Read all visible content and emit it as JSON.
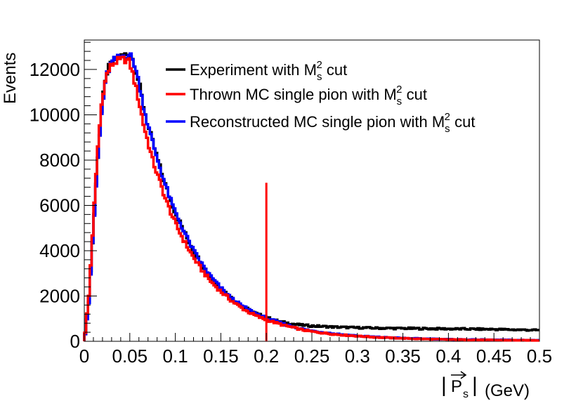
{
  "chart_data": {
    "type": "line",
    "title": "",
    "xlabel": "|P_s| (GeV)",
    "xlabel_parts": {
      "bar_left": "|",
      "symbol": "P",
      "subscript": "s",
      "bar_right": "|",
      "unit": "(GeV)"
    },
    "ylabel": "Events",
    "xlim": [
      0,
      0.5
    ],
    "ylim": [
      0,
      13300
    ],
    "x_ticks": [
      0,
      0.05,
      0.1,
      0.15,
      0.2,
      0.25,
      0.3,
      0.35,
      0.4,
      0.45,
      0.5
    ],
    "x_tick_labels": [
      "0",
      "0.05",
      "0.1",
      "0.15",
      "0.2",
      "0.25",
      "0.3",
      "0.35",
      "0.4",
      "0.45",
      "0.5"
    ],
    "y_ticks": [
      0,
      2000,
      4000,
      6000,
      8000,
      10000,
      12000
    ],
    "y_tick_labels": [
      "0",
      "2000",
      "4000",
      "6000",
      "8000",
      "10000",
      "12000"
    ],
    "grid": false,
    "legend_position": "top-right",
    "series": [
      {
        "name": "Experiment with M_s^2 cut",
        "legend": {
          "before": "Experiment with M",
          "sub": "s",
          "sup": "2",
          "after": " cut"
        },
        "color": "#000000",
        "x": [
          0.0,
          0.005,
          0.01,
          0.015,
          0.02,
          0.025,
          0.03,
          0.035,
          0.04,
          0.045,
          0.05,
          0.055,
          0.06,
          0.065,
          0.07,
          0.075,
          0.08,
          0.085,
          0.09,
          0.095,
          0.1,
          0.11,
          0.12,
          0.13,
          0.14,
          0.15,
          0.16,
          0.17,
          0.18,
          0.19,
          0.2,
          0.21,
          0.22,
          0.23,
          0.24,
          0.25,
          0.275,
          0.3,
          0.325,
          0.35,
          0.375,
          0.4,
          0.425,
          0.45,
          0.475,
          0.5
        ],
        "y": [
          0,
          1800,
          5000,
          8200,
          10600,
          11900,
          12300,
          12450,
          12550,
          12650,
          12700,
          12300,
          11400,
          10400,
          9500,
          8800,
          8100,
          7400,
          6800,
          6200,
          5700,
          4800,
          4000,
          3350,
          2800,
          2350,
          1950,
          1650,
          1400,
          1200,
          1050,
          920,
          830,
          760,
          710,
          680,
          630,
          600,
          580,
          570,
          560,
          550,
          540,
          530,
          510,
          490
        ]
      },
      {
        "name": "Thrown MC single pion with M_s^2 cut",
        "legend": {
          "before": "Thrown MC single pion with M",
          "sub": "s",
          "sup": "2",
          "after": " cut"
        },
        "color": "#ff0000",
        "x": [
          0.0,
          0.005,
          0.01,
          0.015,
          0.02,
          0.025,
          0.03,
          0.035,
          0.04,
          0.045,
          0.05,
          0.055,
          0.06,
          0.065,
          0.07,
          0.075,
          0.08,
          0.085,
          0.09,
          0.095,
          0.1,
          0.11,
          0.12,
          0.13,
          0.14,
          0.15,
          0.16,
          0.17,
          0.18,
          0.19,
          0.2,
          0.21,
          0.22,
          0.23,
          0.24,
          0.25,
          0.275,
          0.3,
          0.325,
          0.35,
          0.375,
          0.4,
          0.425,
          0.45,
          0.475,
          0.5
        ],
        "y": [
          0,
          2000,
          5400,
          8600,
          10900,
          11800,
          12200,
          12350,
          12400,
          12450,
          12300,
          11500,
          10600,
          9600,
          8800,
          8000,
          7400,
          6800,
          6200,
          5700,
          5200,
          4400,
          3700,
          3100,
          2600,
          2200,
          1850,
          1550,
          1300,
          1100,
          950,
          820,
          700,
          600,
          500,
          430,
          310,
          230,
          170,
          130,
          100,
          80,
          65,
          55,
          45,
          40
        ]
      },
      {
        "name": "Reconstructed MC single pion with M_s^2 cut",
        "legend": {
          "before": "Reconstructed MC single pion with M",
          "sub": "s",
          "sup": "2",
          "after": " cut"
        },
        "color": "#0000ff",
        "x": [
          0.0,
          0.005,
          0.01,
          0.015,
          0.02,
          0.025,
          0.03,
          0.035,
          0.04,
          0.045,
          0.05,
          0.055,
          0.06,
          0.065,
          0.07,
          0.075,
          0.08,
          0.085,
          0.09,
          0.095,
          0.1,
          0.11,
          0.12,
          0.13,
          0.14,
          0.15,
          0.16,
          0.17,
          0.18,
          0.19,
          0.2,
          0.21,
          0.22,
          0.23,
          0.24,
          0.25,
          0.275,
          0.3,
          0.325,
          0.35,
          0.375,
          0.4,
          0.425,
          0.45,
          0.475,
          0.5
        ],
        "y": [
          0,
          1700,
          4900,
          8100,
          10500,
          11800,
          12300,
          12450,
          12550,
          12650,
          12650,
          12250,
          11400,
          10400,
          9500,
          8800,
          8100,
          7400,
          6800,
          6200,
          5700,
          4800,
          4000,
          3350,
          2800,
          2350,
          1950,
          1650,
          1400,
          1200,
          1030,
          880,
          750,
          640,
          540,
          460,
          330,
          240,
          180,
          140,
          110,
          90,
          75,
          65,
          55,
          50
        ]
      }
    ],
    "annotations": [
      {
        "type": "vertical-line",
        "x": 0.2,
        "y_from": 0,
        "y_to": 7000,
        "color": "#ff0000"
      }
    ]
  }
}
